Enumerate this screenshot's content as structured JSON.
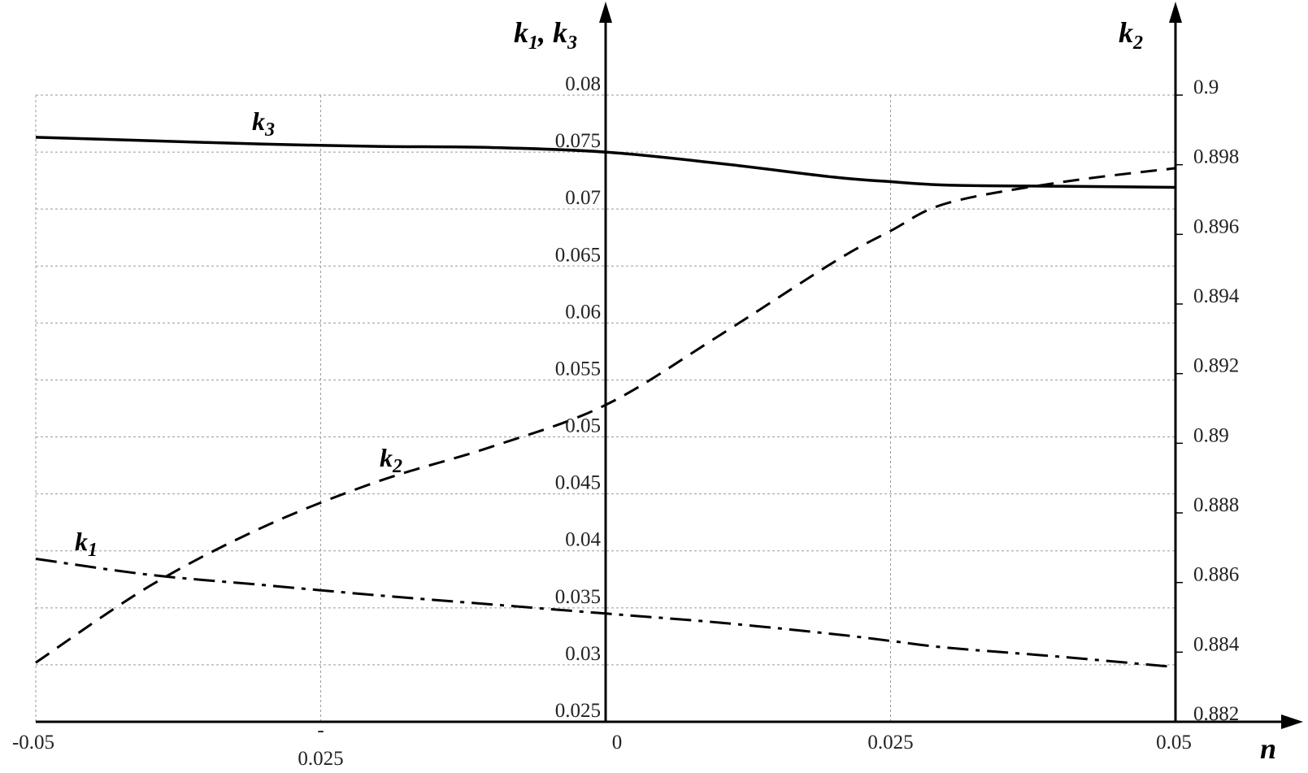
{
  "chart_data": {
    "type": "line",
    "x": [
      -0.05,
      -0.04,
      -0.03,
      -0.02,
      -0.01,
      0,
      0.01,
      0.02,
      0.025,
      0.03,
      0.04,
      0.05
    ],
    "xlabel": "n",
    "xlim": [
      -0.05,
      0.05
    ],
    "x_tick_labels": [
      "-0.05",
      "-",
      "0.025",
      "0",
      "0.025",
      "0.05"
    ],
    "y_left": {
      "label_main": "k",
      "label_sub1": "1",
      "label_sep": ", k",
      "label_sub2": "3",
      "ylim": [
        0.025,
        0.08
      ],
      "ticks": [
        "0.08",
        "0.075",
        "0.07",
        "0.065",
        "0.06",
        "0.055",
        "0.05",
        "0.045",
        "0.04",
        "0.035",
        "0.03",
        "0.025"
      ]
    },
    "y_right": {
      "label_main": "k",
      "label_sub": "2",
      "ylim": [
        0.882,
        0.9
      ],
      "ticks": [
        "0.9",
        "0.898",
        "0.896",
        "0.894",
        "0.892",
        "0.89",
        "0.888",
        "0.886",
        "0.884",
        "0.882"
      ]
    },
    "grid": true,
    "series": [
      {
        "name": "k3",
        "label_main": "k",
        "label_sub": "3",
        "axis": "left",
        "style": "solid",
        "values": [
          0.0763,
          0.076,
          0.0757,
          0.0755,
          0.0754,
          0.075,
          0.074,
          0.0728,
          0.0724,
          0.0721,
          0.072,
          0.0719
        ]
      },
      {
        "name": "k2",
        "label_main": "k",
        "label_sub": "2",
        "axis": "right",
        "style": "dashed",
        "values": [
          0.8837,
          0.8859,
          0.8876,
          0.8889,
          0.8899,
          0.8911,
          0.8931,
          0.8952,
          0.8961,
          0.8969,
          0.8975,
          0.8979
        ]
      },
      {
        "name": "k1",
        "label_main": "k",
        "label_sub": "1",
        "axis": "left",
        "style": "dashdot",
        "values": [
          0.0393,
          0.0379,
          0.037,
          0.0361,
          0.0353,
          0.0345,
          0.0337,
          0.0327,
          0.0321,
          0.0315,
          0.0307,
          0.0298
        ]
      }
    ],
    "colors": {
      "line": "#000000",
      "grid": "#9a9a9a"
    }
  }
}
